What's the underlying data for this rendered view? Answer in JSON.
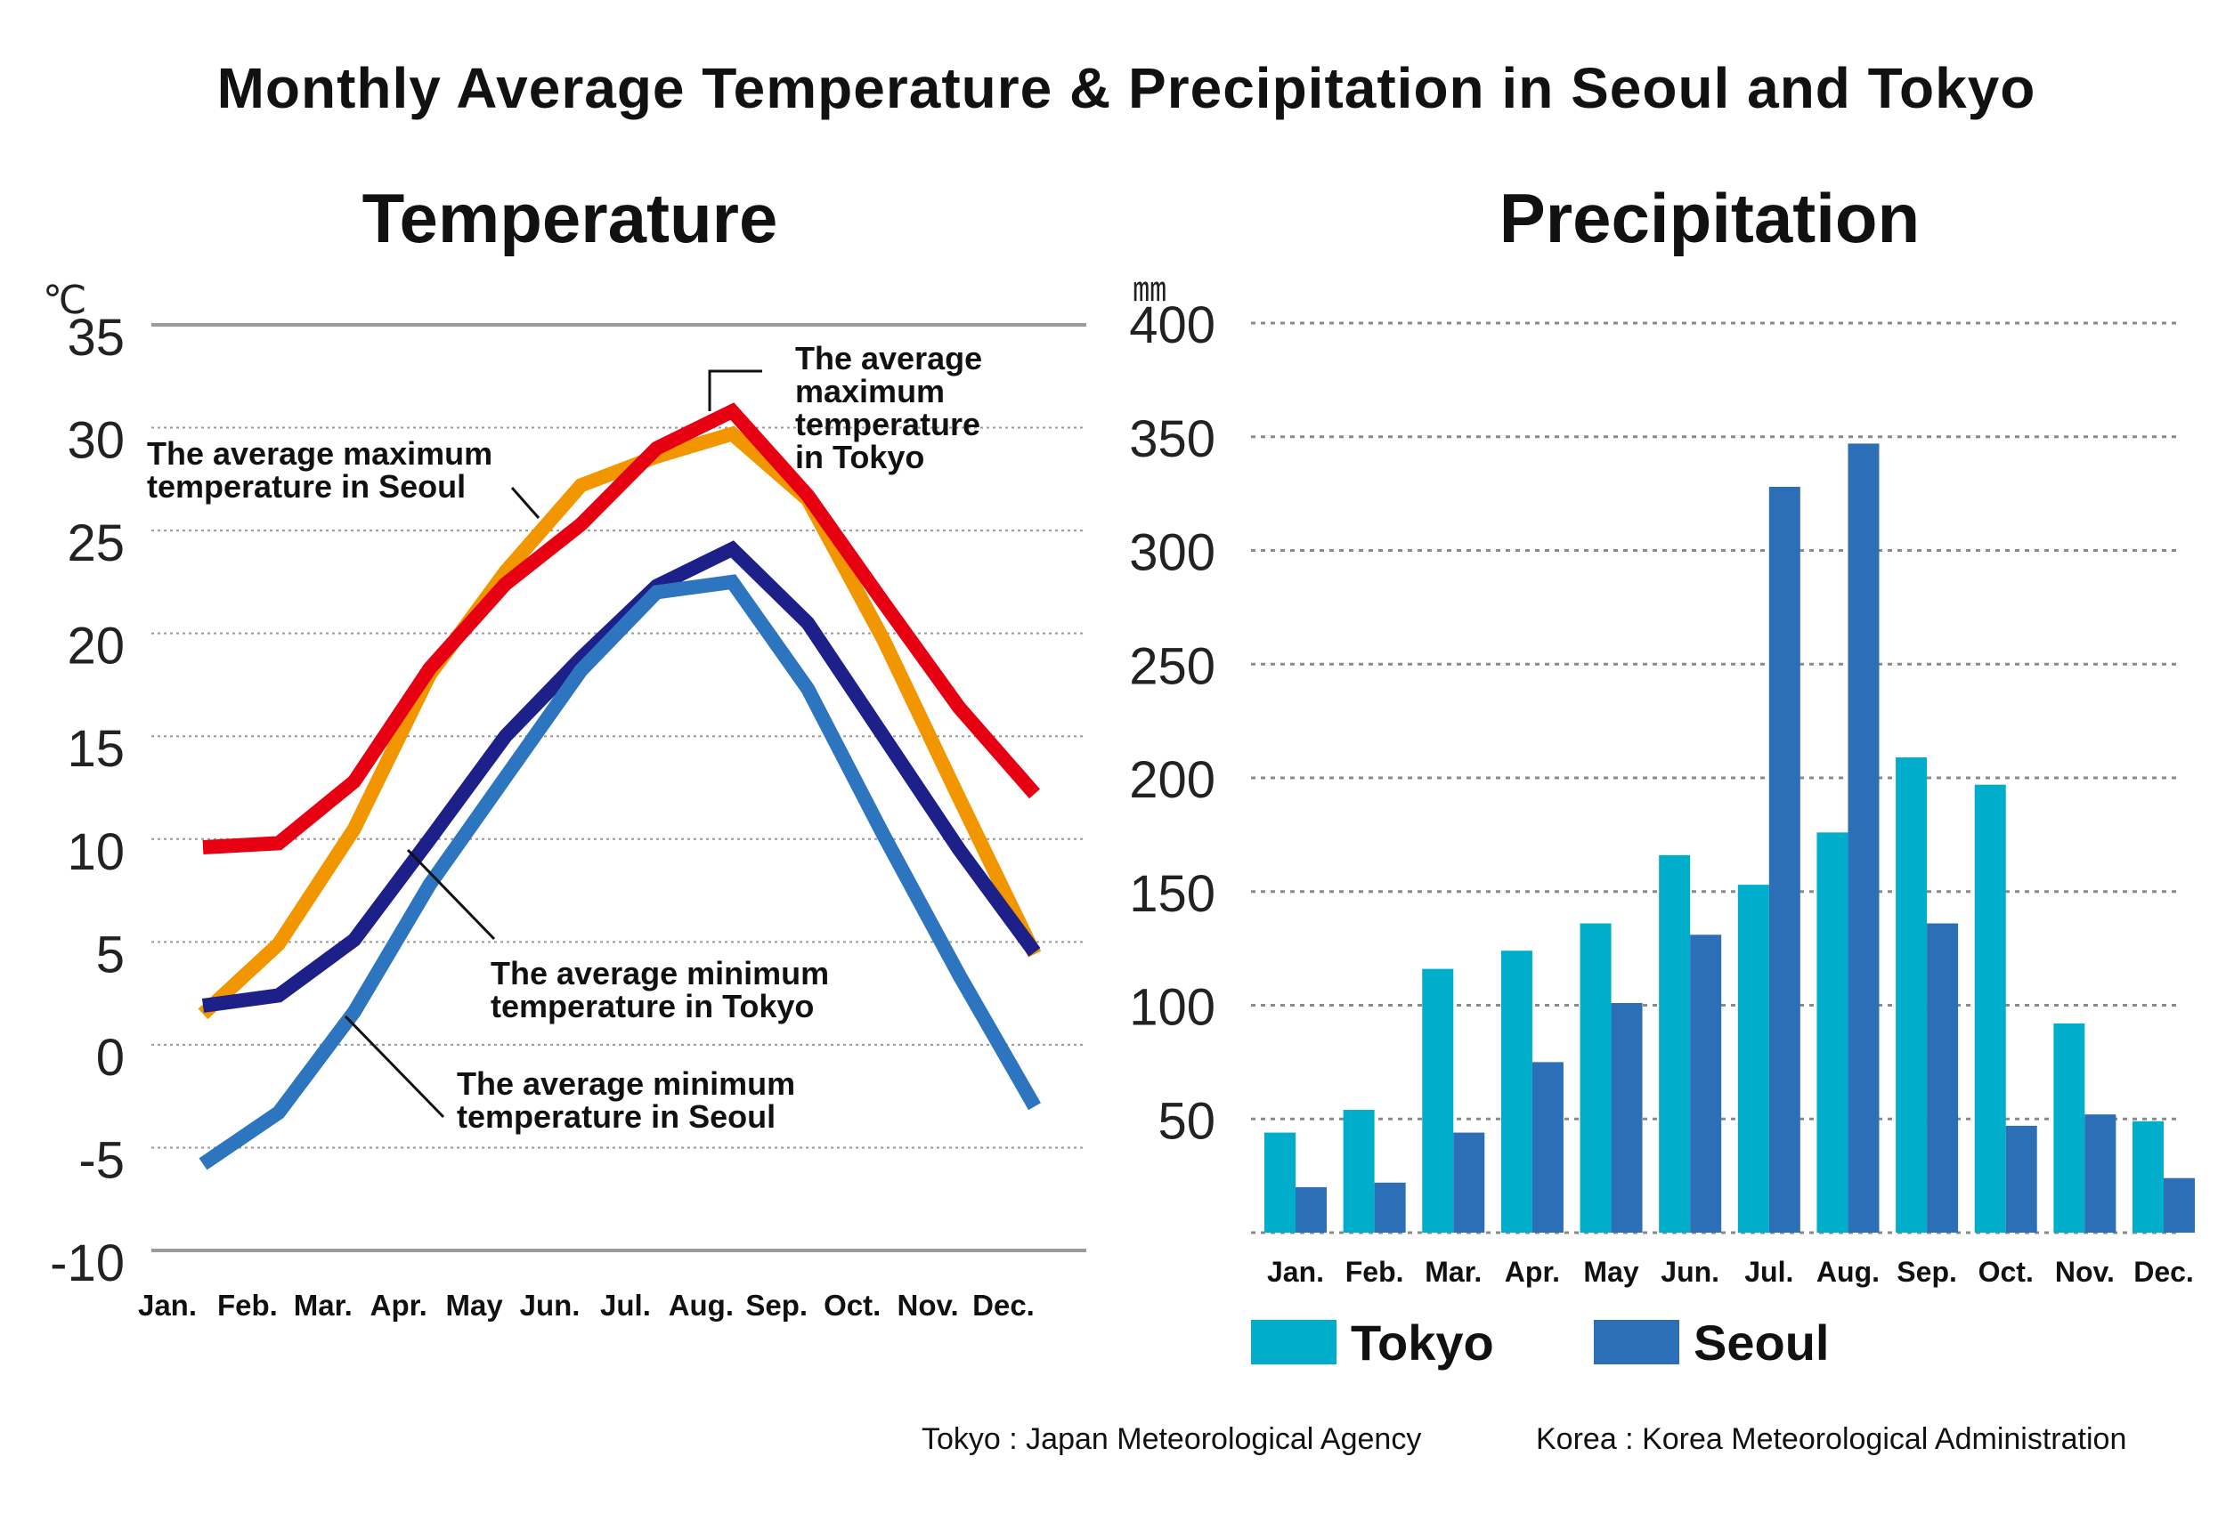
{
  "title": "Monthly Average Temperature & Precipitation in Seoul and Tokyo",
  "colors": {
    "tokyo_max": "#E60012",
    "seoul_max": "#F29600",
    "tokyo_min": "#1D2088",
    "seoul_min": "#2E75C0",
    "precip_tokyo": "#00AECB",
    "precip_seoul": "#2C6FB7"
  },
  "footer": {
    "source_tokyo": "Tokyo : Japan Meteorological Agency",
    "source_korea": "Korea : Korea Meteorological Administration"
  },
  "chart_data": [
    {
      "type": "line",
      "title": "Temperature",
      "ylabel": "℃",
      "xlabel": "",
      "ylim": [
        -10,
        35
      ],
      "yticks": [
        35,
        30,
        25,
        20,
        15,
        10,
        5,
        0,
        -5,
        -10
      ],
      "grid": true,
      "categories": [
        "Jan.",
        "Feb.",
        "Mar.",
        "Apr.",
        "May",
        "Jun.",
        "Jul.",
        "Aug.",
        "Sep.",
        "Oct.",
        "Nov.",
        "Dec."
      ],
      "series": [
        {
          "name": "The average maximum temperature in Seoul",
          "color": "#F29600",
          "values": [
            1.5,
            4.9,
            10.5,
            18.0,
            23.0,
            27.2,
            28.6,
            29.7,
            26.5,
            19.7,
            12.0,
            4.4
          ]
        },
        {
          "name": "The average maximum temperature in Tokyo",
          "color": "#E60012",
          "values": [
            9.6,
            9.8,
            12.8,
            18.3,
            22.4,
            25.3,
            29.0,
            30.8,
            26.7,
            21.5,
            16.4,
            12.2
          ]
        },
        {
          "name": "The average minimum temperature in Tokyo",
          "color": "#1D2088",
          "values": [
            1.9,
            2.4,
            5.1,
            10.0,
            15.0,
            18.8,
            22.3,
            24.1,
            20.5,
            15.0,
            9.5,
            4.5
          ]
        },
        {
          "name": "The average minimum temperature in Seoul",
          "color": "#2E75C0",
          "values": [
            -5.8,
            -3.3,
            1.6,
            7.8,
            13.0,
            18.2,
            22.0,
            22.5,
            17.3,
            10.2,
            3.4,
            -3.0
          ]
        }
      ],
      "annotations": [
        {
          "lines": [
            "The average maximum",
            "temperature in Seoul"
          ]
        },
        {
          "lines": [
            "The average",
            "maximum",
            "temperature",
            "in Tokyo"
          ]
        },
        {
          "lines": [
            "The average minimum",
            "temperature in Tokyo"
          ]
        },
        {
          "lines": [
            "The average minimum",
            "temperature in Seoul"
          ]
        }
      ]
    },
    {
      "type": "bar",
      "title": "Precipitation",
      "ylabel": "㎜",
      "xlabel": "",
      "ylim": [
        0,
        400
      ],
      "yticks": [
        400,
        350,
        300,
        250,
        200,
        150,
        100,
        50
      ],
      "grid": true,
      "legend": "bottom-left",
      "categories": [
        "Jan.",
        "Feb.",
        "Mar.",
        "Apr.",
        "May",
        "Jun.",
        "Jul.",
        "Aug.",
        "Sep.",
        "Oct.",
        "Nov.",
        "Dec."
      ],
      "series": [
        {
          "name": "Tokyo",
          "color": "#00AECB",
          "values": [
            44,
            54,
            116,
            124,
            136,
            166,
            153,
            176,
            209,
            197,
            92,
            49
          ]
        },
        {
          "name": "Seoul",
          "color": "#2C6FB7",
          "values": [
            20,
            22,
            44,
            75,
            101,
            131,
            328,
            347,
            136,
            47,
            52,
            24
          ]
        }
      ]
    }
  ]
}
